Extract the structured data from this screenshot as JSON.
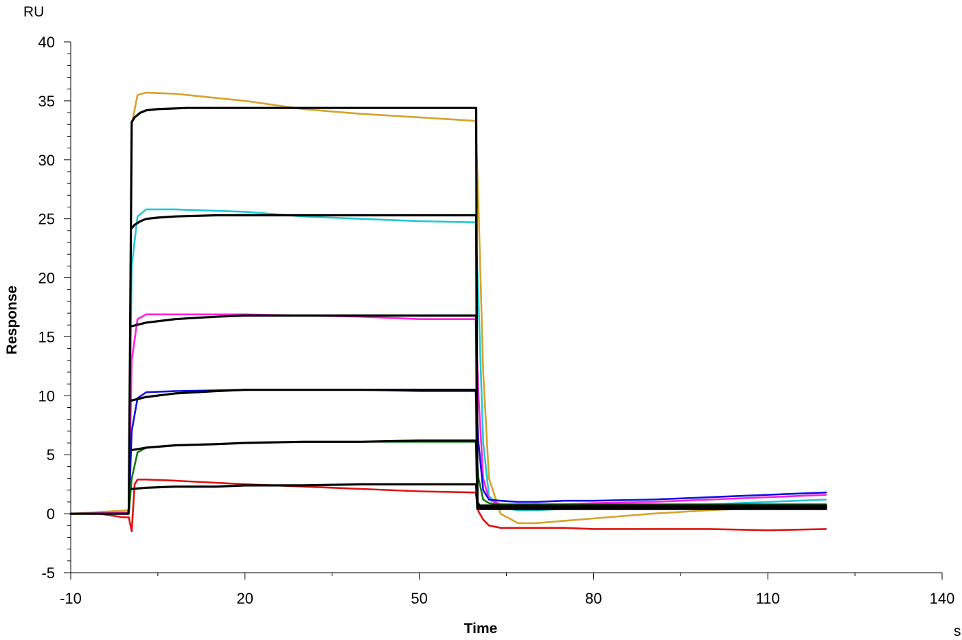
{
  "chart_data": {
    "type": "line",
    "title": "",
    "xlabel": "Time",
    "ylabel": "Response",
    "x_unit": "s",
    "y_unit": "RU",
    "xlim": [
      -10,
      140
    ],
    "ylim": [
      -5,
      40
    ],
    "x_ticks": [
      -10,
      20,
      50,
      80,
      110,
      140
    ],
    "x_tick_labels": [
      "-10",
      "20",
      "50",
      "80",
      "110",
      "140"
    ],
    "y_ticks": [
      -5,
      0,
      5,
      10,
      15,
      20,
      25,
      30,
      35,
      40
    ],
    "y_tick_labels": [
      "-5",
      "0",
      "5",
      "10",
      "15",
      "20",
      "25",
      "30",
      "35",
      "40"
    ],
    "grid": false,
    "legend": "none",
    "series": [
      {
        "color": "#d4a32a",
        "x": [
          -10,
          0,
          0.5,
          1.5,
          3,
          8,
          20,
          30,
          40,
          50,
          59.7,
          60.2,
          61,
          62,
          64,
          67,
          70,
          75,
          80,
          90,
          100,
          110,
          120
        ],
        "y": [
          0,
          0.3,
          33,
          35.5,
          35.7,
          35.6,
          35,
          34.3,
          33.9,
          33.6,
          33.3,
          26,
          12,
          3,
          0,
          -0.8,
          -0.8,
          -0.6,
          -0.4,
          0,
          0.3,
          0.5,
          0.7
        ]
      },
      {
        "color": "#20c8d0",
        "x": [
          -10,
          0,
          0.5,
          1.5,
          3,
          8,
          20,
          30,
          40,
          50,
          59.7,
          60.2,
          61,
          62,
          64,
          67,
          70,
          75,
          80,
          90,
          100,
          110,
          120
        ],
        "y": [
          0,
          0.1,
          21,
          25.2,
          25.8,
          25.8,
          25.6,
          25.2,
          25,
          24.8,
          24.7,
          18,
          6,
          1.5,
          0.5,
          0.3,
          0.3,
          0.4,
          0.4,
          0.6,
          0.8,
          1,
          1.2
        ]
      },
      {
        "color": "#ff20e0",
        "x": [
          -10,
          0,
          0.5,
          1.5,
          3,
          8,
          20,
          30,
          40,
          50,
          59.7,
          60.2,
          61,
          62,
          64,
          67,
          70,
          75,
          80,
          90,
          100,
          110,
          120
        ],
        "y": [
          0,
          0.1,
          13,
          16.5,
          16.9,
          16.9,
          16.9,
          16.8,
          16.7,
          16.5,
          16.5,
          10,
          3,
          1.2,
          0.8,
          0.7,
          0.8,
          0.8,
          0.9,
          1,
          1.2,
          1.4,
          1.6
        ]
      },
      {
        "color": "#1010e0",
        "x": [
          -10,
          0,
          0.5,
          1.5,
          3,
          8,
          20,
          30,
          40,
          50,
          59.7,
          60.2,
          61,
          62,
          64,
          67,
          70,
          75,
          80,
          90,
          100,
          110,
          120
        ],
        "y": [
          0,
          0,
          7,
          9.8,
          10.3,
          10.4,
          10.5,
          10.5,
          10.5,
          10.4,
          10.4,
          6,
          2,
          1.2,
          1.1,
          1,
          1,
          1.1,
          1.1,
          1.2,
          1.4,
          1.6,
          1.8
        ]
      },
      {
        "color": "#107a10",
        "x": [
          -10,
          0,
          0.5,
          1.5,
          3,
          8,
          20,
          30,
          40,
          50,
          59.7,
          60.2,
          61,
          62,
          64,
          67,
          70,
          75,
          80,
          90,
          100,
          110,
          120
        ],
        "y": [
          0,
          0,
          3,
          5.2,
          5.6,
          5.8,
          6,
          6.1,
          6.1,
          6.1,
          6.1,
          3,
          1.2,
          0.9,
          0.8,
          0.8,
          0.8,
          0.8,
          0.8,
          0.8,
          0.8,
          0.8,
          0.8
        ]
      },
      {
        "color": "#e01010",
        "x": [
          -10,
          -5,
          -1,
          0,
          0.5,
          1,
          1.5,
          3,
          8,
          20,
          30,
          40,
          50,
          59.7,
          60.2,
          61,
          62,
          64,
          67,
          70,
          75,
          80,
          90,
          100,
          110,
          120
        ],
        "y": [
          0,
          0,
          -0.3,
          -0.3,
          -1.5,
          2.5,
          2.9,
          2.9,
          2.8,
          2.5,
          2.3,
          2.1,
          1.9,
          1.8,
          0.2,
          -0.5,
          -1,
          -1.2,
          -1.2,
          -1.2,
          -1.2,
          -1.3,
          -1.3,
          -1.3,
          -1.4,
          -1.3
        ]
      },
      {
        "color": "#000000",
        "x": [
          -10,
          -0.1,
          0,
          0.5,
          1,
          2,
          3,
          5,
          10,
          20,
          30,
          40,
          50,
          59.8,
          60,
          60.5,
          61,
          63,
          70,
          120
        ],
        "y": [
          0,
          0,
          0.5,
          33.2,
          33.6,
          34,
          34.2,
          34.3,
          34.4,
          34.4,
          34.4,
          34.4,
          34.4,
          34.4,
          1,
          0.6,
          0.5,
          0.5,
          0.5,
          0.5
        ]
      },
      {
        "color": "#000000",
        "x": [
          0.5,
          1,
          2,
          3,
          5,
          8,
          15,
          20,
          30,
          40,
          50,
          59.8,
          60,
          120
        ],
        "y": [
          24.2,
          24.5,
          24.8,
          25,
          25.1,
          25.2,
          25.3,
          25.3,
          25.3,
          25.3,
          25.3,
          25.3,
          0.6,
          0.6
        ]
      },
      {
        "color": "#000000",
        "x": [
          0.5,
          3,
          8,
          15,
          20,
          30,
          40,
          50,
          59.8,
          60,
          120
        ],
        "y": [
          15.9,
          16.2,
          16.5,
          16.7,
          16.8,
          16.8,
          16.8,
          16.8,
          16.8,
          0.7,
          0.7
        ]
      },
      {
        "color": "#000000",
        "x": [
          0.5,
          3,
          8,
          15,
          20,
          30,
          40,
          50,
          59.8,
          60,
          120
        ],
        "y": [
          9.6,
          9.9,
          10.2,
          10.4,
          10.5,
          10.5,
          10.5,
          10.5,
          10.5,
          0.7,
          0.7
        ]
      },
      {
        "color": "#000000",
        "x": [
          0.5,
          3,
          8,
          15,
          20,
          30,
          40,
          50,
          59.8,
          60,
          120
        ],
        "y": [
          5.4,
          5.6,
          5.8,
          5.9,
          6,
          6.1,
          6.1,
          6.2,
          6.2,
          0.6,
          0.6
        ]
      },
      {
        "color": "#000000",
        "x": [
          0.5,
          3,
          8,
          15,
          20,
          30,
          40,
          50,
          59.8,
          60,
          120
        ],
        "y": [
          2.1,
          2.2,
          2.3,
          2.3,
          2.4,
          2.4,
          2.5,
          2.5,
          2.5,
          0.4,
          0.4
        ]
      }
    ]
  }
}
